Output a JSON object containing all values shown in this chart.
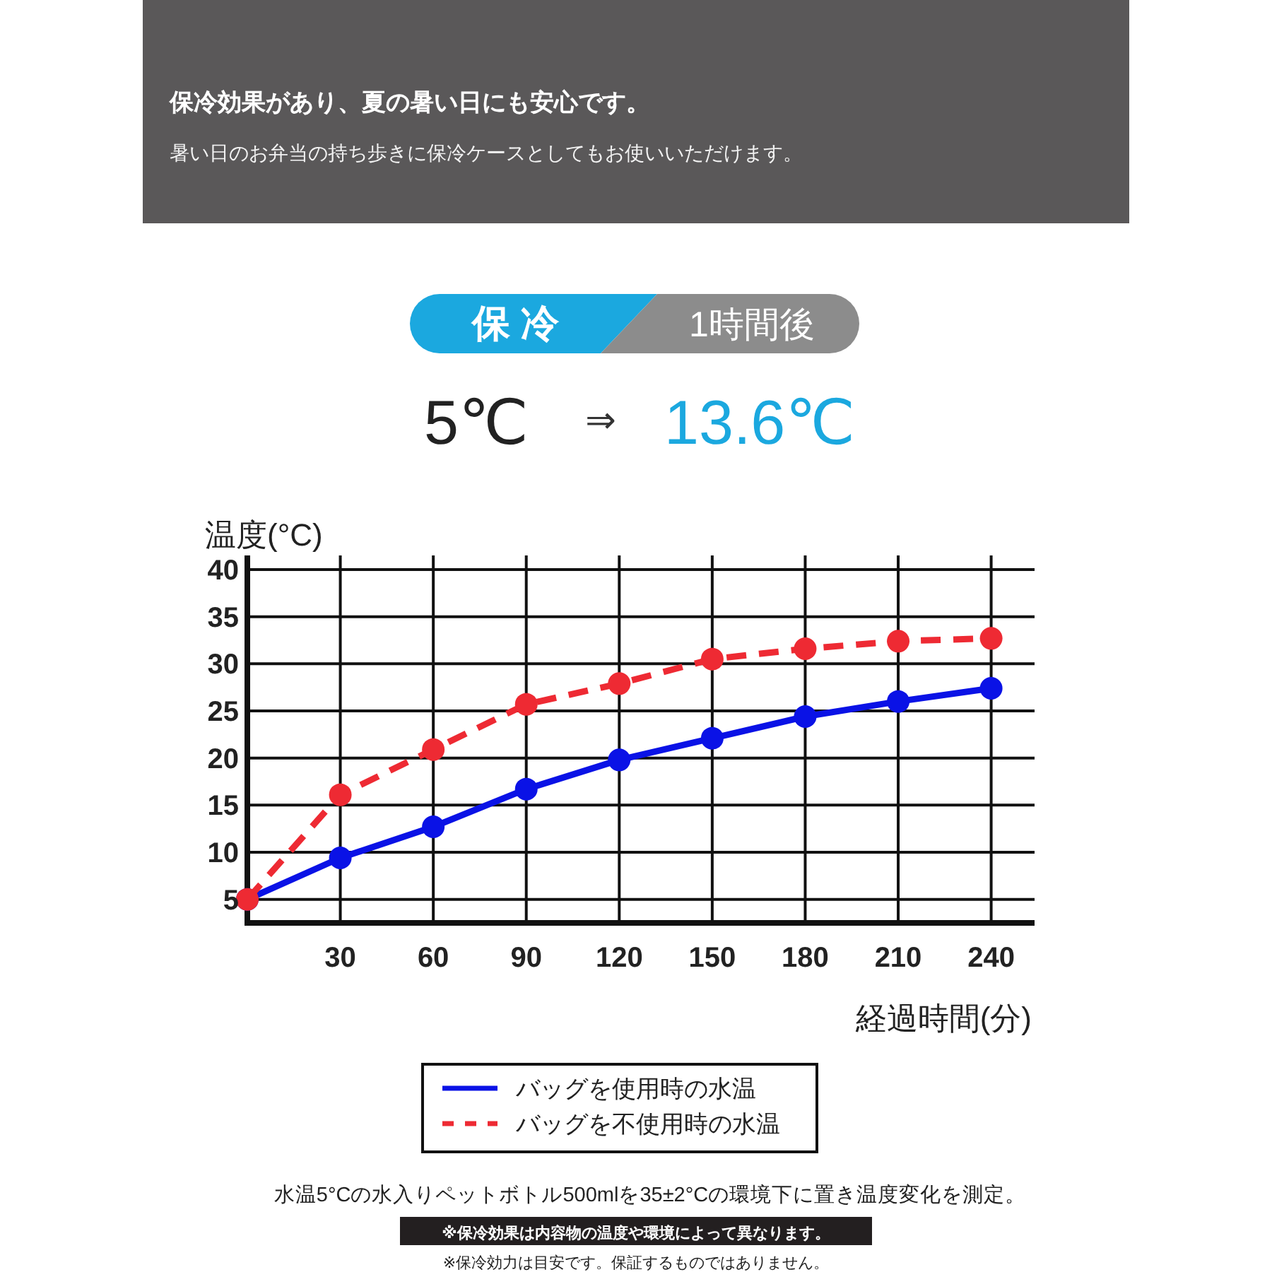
{
  "chart_data": {
    "type": "line",
    "title": "保冷効果があり、夏の暑い日にも安心です。",
    "subtitle": "暑い日のお弁当の持ち歩きに保冷ケースとしてもお使いいただけます。",
    "xlabel": "経過時間(分)",
    "ylabel": "温度(°C)",
    "x": [
      0,
      30,
      60,
      90,
      120,
      150,
      180,
      210,
      240
    ],
    "series": [
      {
        "name": "バッグを使用時の水温",
        "color": "#0a12e6",
        "line_style": "solid",
        "values": [
          5,
          9.4,
          12.7,
          16.7,
          19.8,
          22.1,
          24.4,
          26.0,
          27.4
        ]
      },
      {
        "name": "バッグを不使用時の水温",
        "color": "#ee2a33",
        "line_style": "dashed",
        "values": [
          5,
          16.1,
          20.9,
          25.7,
          27.9,
          30.5,
          31.6,
          32.4,
          32.7
        ]
      }
    ],
    "xlim": [
      0,
      254
    ],
    "ylim": [
      2.5,
      41.5
    ],
    "xticks": [
      30,
      60,
      90,
      120,
      150,
      180,
      210,
      240
    ],
    "yticks": [
      5,
      10,
      15,
      20,
      25,
      30,
      35,
      40
    ],
    "grid": true,
    "legend": "bottom",
    "marker": "circle",
    "annotations": [
      "保 冷",
      "1時間後",
      "5℃",
      "⇒",
      "13.6℃",
      "水温5°Cの水入りペットボトル500mlを35±2°Cの環境下に置き温度変化を測定。",
      "※保冷効果は内容物の温度や環境によって異なります。",
      "※保冷効力は目安です。保証するものではありません。"
    ]
  }
}
